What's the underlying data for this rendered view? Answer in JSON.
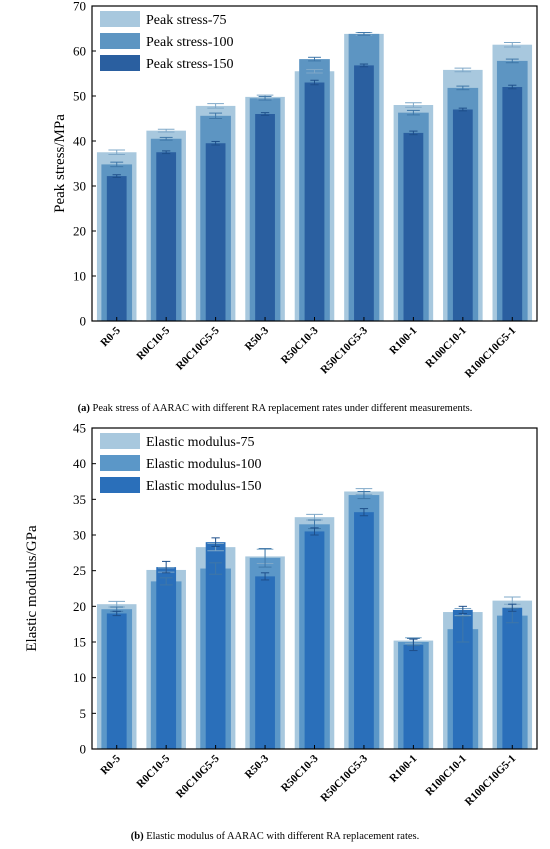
{
  "chart_data": [
    {
      "type": "bar",
      "panel": "a",
      "ylabel": "Peak stress/MPa",
      "xlabel": "",
      "ylim": [
        0,
        70
      ],
      "yticks": [
        0,
        10,
        20,
        30,
        40,
        50,
        60,
        70
      ],
      "categories": [
        "R0-5",
        "R0C10-5",
        "R0C10G5-5",
        "R50-3",
        "R50C10-3",
        "R50C10G5-3",
        "R100-1",
        "R100C10-1",
        "R100C10G5-1"
      ],
      "series": [
        {
          "name": "Peak stress-75",
          "color": "#a8c8de",
          "values": [
            37.5,
            42.3,
            47.8,
            49.8,
            55.5,
            63.8,
            48.0,
            55.8,
            61.4
          ],
          "errors": [
            0.5,
            0.3,
            0.5,
            0.4,
            0.4,
            0.3,
            0.5,
            0.4,
            0.5
          ]
        },
        {
          "name": "Peak stress-100",
          "color": "#5d95c2",
          "values": [
            34.8,
            40.5,
            45.6,
            49.5,
            58.2,
            63.8,
            46.3,
            51.8,
            57.8
          ],
          "errors": [
            0.5,
            0.3,
            0.6,
            0.4,
            0.4,
            0.3,
            0.5,
            0.4,
            0.4
          ]
        },
        {
          "name": "Peak stress-150",
          "color": "#2a5fa0",
          "values": [
            32.2,
            37.5,
            39.5,
            46.0,
            53.0,
            56.8,
            41.8,
            47.0,
            52.0
          ],
          "errors": [
            0.3,
            0.3,
            0.4,
            0.3,
            0.5,
            0.3,
            0.4,
            0.3,
            0.4
          ]
        }
      ],
      "legend": "top-left",
      "caption_label": "(a)",
      "caption_text": " Peak stress of AARAC with different RA replacement rates under different measurements."
    },
    {
      "type": "bar",
      "panel": "b",
      "ylabel": "Elastic modulus/GPa",
      "xlabel": "",
      "ylim": [
        0,
        45
      ],
      "yticks": [
        0,
        5,
        10,
        15,
        20,
        25,
        30,
        35,
        40,
        45
      ],
      "categories": [
        "R0-5",
        "R0C10-5",
        "R0C10G5-5",
        "R50-3",
        "R50C10-3",
        "R50C10G5-3",
        "R100-1",
        "R100C10-1",
        "R100C10G5-1"
      ],
      "series": [
        {
          "name": "Elastic modulus-75",
          "color": "#a8c8de",
          "values": [
            20.3,
            25.1,
            28.3,
            27.0,
            32.5,
            36.1,
            15.2,
            19.2,
            20.8
          ],
          "errors": [
            0.4,
            0.3,
            0.5,
            1.0,
            0.4,
            0.4,
            0.4,
            0.5,
            0.5
          ]
        },
        {
          "name": "Elastic modulus-100",
          "color": "#5b97c8",
          "values": [
            19.6,
            23.5,
            25.3,
            26.8,
            31.5,
            35.6,
            15.0,
            16.8,
            18.7
          ],
          "errors": [
            0.3,
            0.5,
            0.8,
            1.3,
            0.6,
            0.5,
            0.5,
            1.8,
            1.0
          ]
        },
        {
          "name": "Elastic modulus-150",
          "color": "#2a6fba",
          "values": [
            19.0,
            25.5,
            29.0,
            24.2,
            30.5,
            33.2,
            14.6,
            19.5,
            19.8
          ],
          "errors": [
            0.3,
            0.8,
            0.6,
            0.5,
            0.5,
            0.5,
            0.8,
            0.5,
            0.5
          ]
        }
      ],
      "legend": "top-left",
      "caption_label": "(b)",
      "caption_text": " Elastic modulus of AARAC with different RA replacement rates."
    }
  ]
}
